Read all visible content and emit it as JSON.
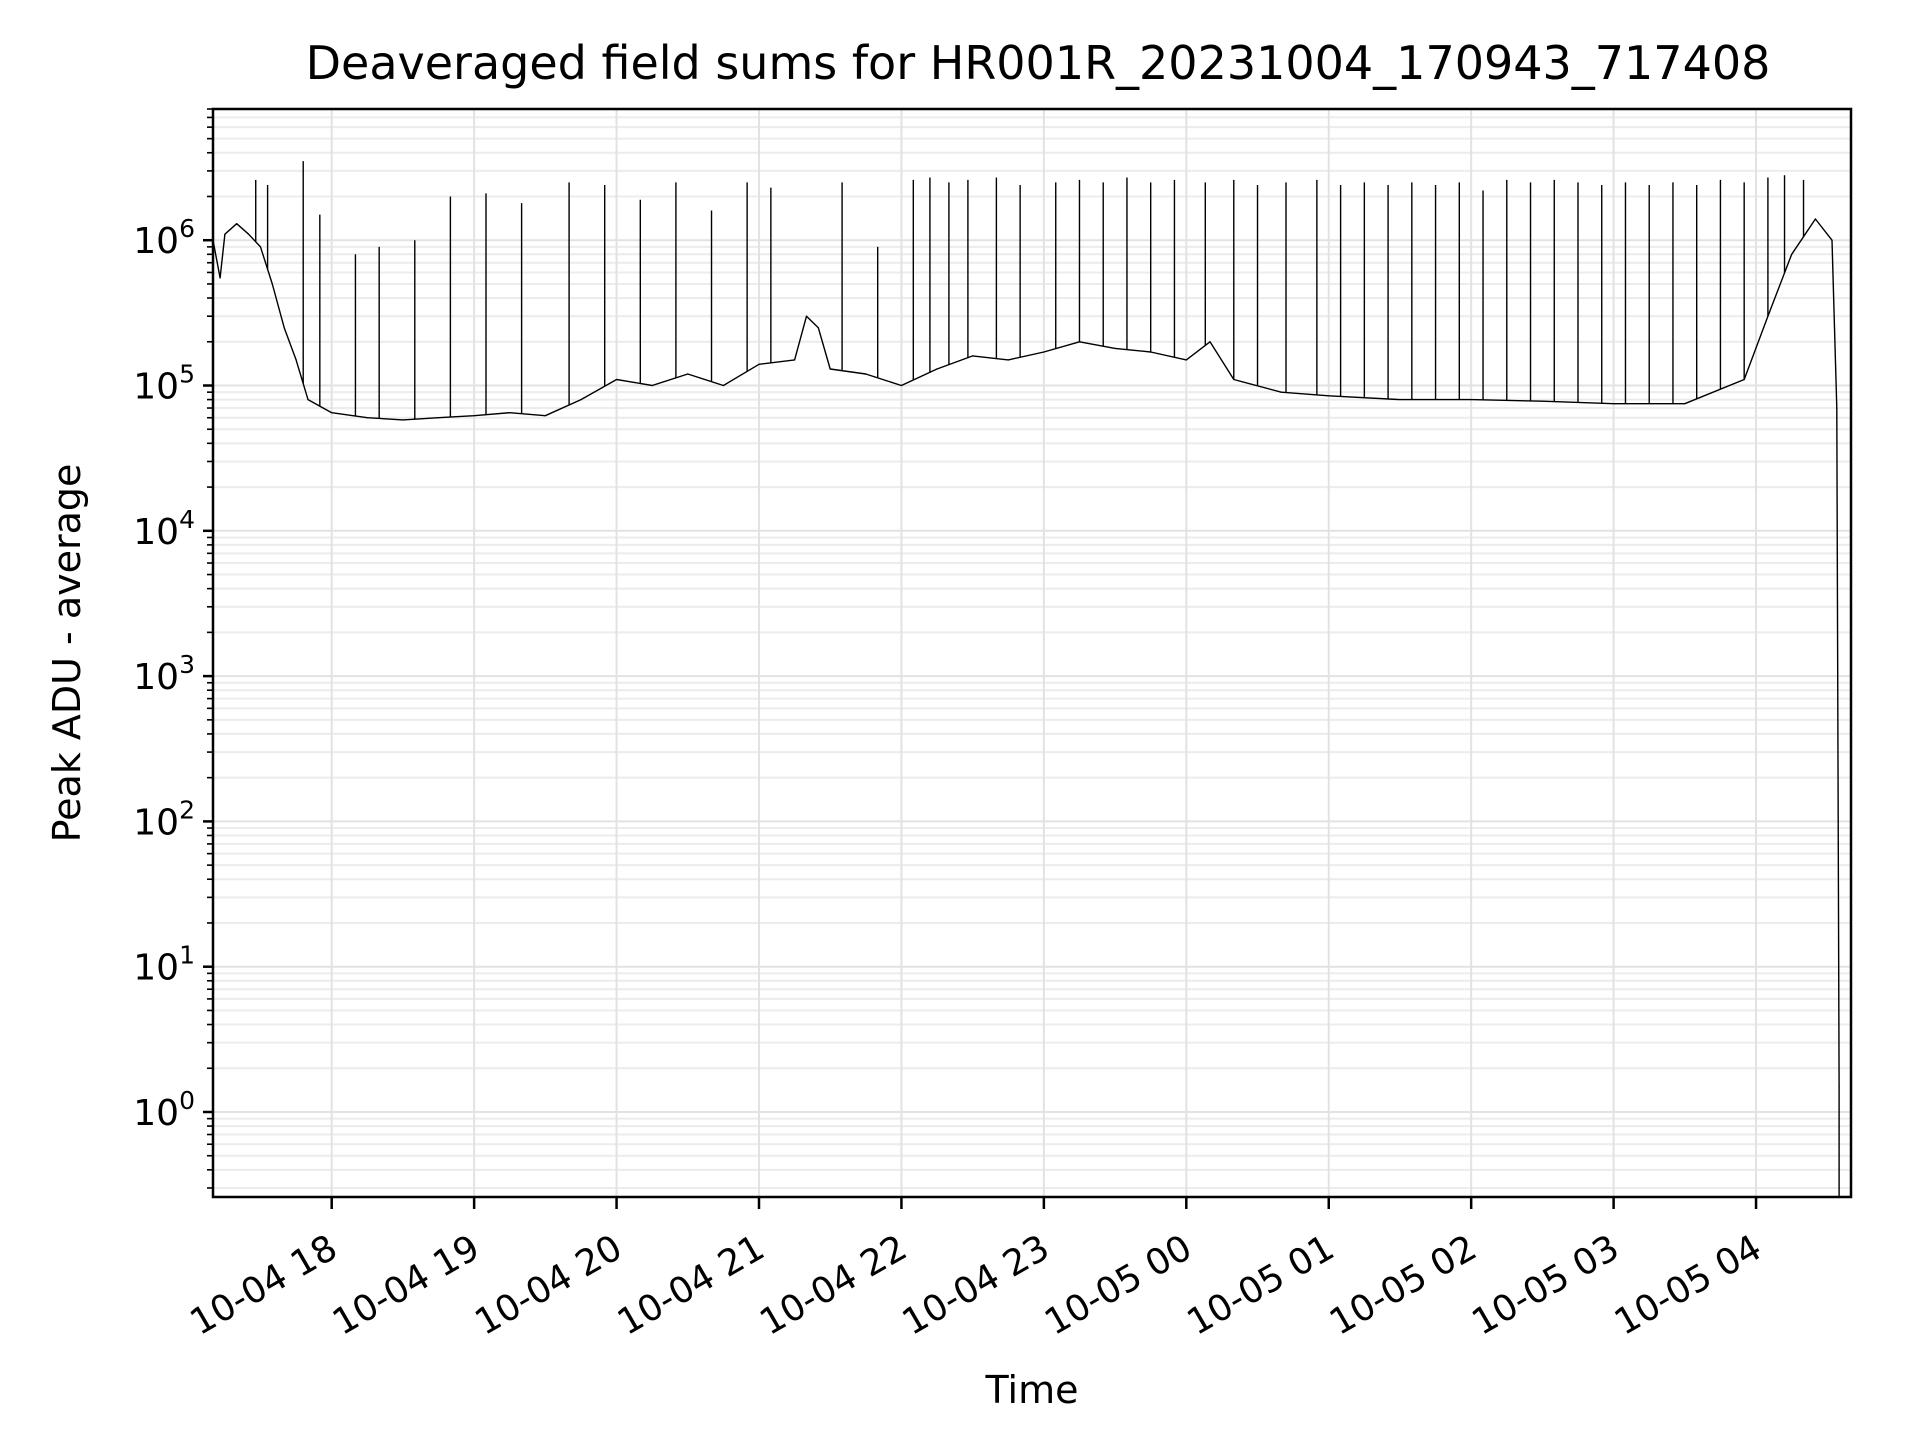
{
  "chart_data": {
    "type": "line",
    "title": "Deaveraged field sums for HR001R_20231004_170943_717408",
    "xlabel": "Time",
    "ylabel": "Peak ADU - average",
    "yscale": "log",
    "xlim": [
      "2023-10-04 17:10",
      "2023-10-05 04:40"
    ],
    "ylim": [
      0.26,
      8000000
    ],
    "grid": true,
    "x_ticks": [
      "10-04 18",
      "10-04 19",
      "10-04 20",
      "10-04 21",
      "10-04 22",
      "10-04 23",
      "10-05 00",
      "10-05 01",
      "10-05 02",
      "10-05 03",
      "10-05 04"
    ],
    "y_ticks": [
      {
        "value": 1,
        "base": "10",
        "exp": "0"
      },
      {
        "value": 10,
        "base": "10",
        "exp": "1"
      },
      {
        "value": 100,
        "base": "10",
        "exp": "2"
      },
      {
        "value": 1000,
        "base": "10",
        "exp": "3"
      },
      {
        "value": 10000,
        "base": "10",
        "exp": "4"
      },
      {
        "value": 100000,
        "base": "10",
        "exp": "5"
      },
      {
        "value": 1000000,
        "base": "10",
        "exp": "6"
      }
    ],
    "series": [
      {
        "color": "#000000",
        "points": [
          [
            "2023-10-04 17:10",
            1000000
          ],
          [
            "2023-10-04 17:13",
            550000
          ],
          [
            "2023-10-04 17:15",
            1100000
          ],
          [
            "2023-10-04 17:20",
            1300000
          ],
          [
            "2023-10-04 17:25",
            1100000
          ],
          [
            "2023-10-04 17:30",
            900000
          ],
          [
            "2023-10-04 17:35",
            500000
          ],
          [
            "2023-10-04 17:40",
            250000
          ],
          [
            "2023-10-04 17:45",
            150000
          ],
          [
            "2023-10-04 17:50",
            80000
          ],
          [
            "2023-10-04 18:00",
            65000
          ],
          [
            "2023-10-04 18:15",
            60000
          ],
          [
            "2023-10-04 18:30",
            58000
          ],
          [
            "2023-10-04 18:45",
            60000
          ],
          [
            "2023-10-04 19:00",
            62000
          ],
          [
            "2023-10-04 19:15",
            65000
          ],
          [
            "2023-10-04 19:30",
            62000
          ],
          [
            "2023-10-04 19:45",
            80000
          ],
          [
            "2023-10-04 20:00",
            110000
          ],
          [
            "2023-10-04 20:15",
            100000
          ],
          [
            "2023-10-04 20:30",
            120000
          ],
          [
            "2023-10-04 20:45",
            100000
          ],
          [
            "2023-10-04 21:00",
            140000
          ],
          [
            "2023-10-04 21:15",
            150000
          ],
          [
            "2023-10-04 21:20",
            300000
          ],
          [
            "2023-10-04 21:25",
            250000
          ],
          [
            "2023-10-04 21:30",
            130000
          ],
          [
            "2023-10-04 21:45",
            120000
          ],
          [
            "2023-10-04 22:00",
            100000
          ],
          [
            "2023-10-04 22:15",
            130000
          ],
          [
            "2023-10-04 22:30",
            160000
          ],
          [
            "2023-10-04 22:45",
            150000
          ],
          [
            "2023-10-04 23:00",
            170000
          ],
          [
            "2023-10-04 23:15",
            200000
          ],
          [
            "2023-10-04 23:30",
            180000
          ],
          [
            "2023-10-04 23:45",
            170000
          ],
          [
            "2023-10-05 00:00",
            150000
          ],
          [
            "2023-10-05 00:10",
            200000
          ],
          [
            "2023-10-05 00:20",
            110000
          ],
          [
            "2023-10-05 00:40",
            90000
          ],
          [
            "2023-10-05 01:00",
            85000
          ],
          [
            "2023-10-05 01:30",
            80000
          ],
          [
            "2023-10-05 02:00",
            80000
          ],
          [
            "2023-10-05 02:30",
            78000
          ],
          [
            "2023-10-05 03:00",
            75000
          ],
          [
            "2023-10-05 03:30",
            75000
          ],
          [
            "2023-10-05 03:55",
            110000
          ],
          [
            "2023-10-05 04:05",
            300000
          ],
          [
            "2023-10-05 04:15",
            800000
          ],
          [
            "2023-10-05 04:25",
            1400000
          ],
          [
            "2023-10-05 04:32",
            1000000
          ],
          [
            "2023-10-05 04:34",
            70000
          ],
          [
            "2023-10-05 04:35",
            1.5
          ],
          [
            "2023-10-05 04:35",
            0.26
          ]
        ]
      }
    ],
    "spikes": [
      [
        "2023-10-04 17:28",
        2600000
      ],
      [
        "2023-10-04 17:33",
        2400000
      ],
      [
        "2023-10-04 17:48",
        3500000
      ],
      [
        "2023-10-04 17:55",
        1500000
      ],
      [
        "2023-10-04 18:10",
        800000
      ],
      [
        "2023-10-04 18:20",
        900000
      ],
      [
        "2023-10-04 18:35",
        1000000
      ],
      [
        "2023-10-04 18:50",
        2000000
      ],
      [
        "2023-10-04 19:05",
        2100000
      ],
      [
        "2023-10-04 19:20",
        1800000
      ],
      [
        "2023-10-04 19:40",
        2500000
      ],
      [
        "2023-10-04 19:55",
        2400000
      ],
      [
        "2023-10-04 20:10",
        1900000
      ],
      [
        "2023-10-04 20:25",
        2500000
      ],
      [
        "2023-10-04 20:40",
        1600000
      ],
      [
        "2023-10-04 20:55",
        2500000
      ],
      [
        "2023-10-04 21:05",
        2300000
      ],
      [
        "2023-10-04 21:35",
        2500000
      ],
      [
        "2023-10-04 21:50",
        900000
      ],
      [
        "2023-10-04 22:05",
        2600000
      ],
      [
        "2023-10-04 22:12",
        2700000
      ],
      [
        "2023-10-04 22:20",
        2500000
      ],
      [
        "2023-10-04 22:28",
        2600000
      ],
      [
        "2023-10-04 22:40",
        2700000
      ],
      [
        "2023-10-04 22:50",
        2400000
      ],
      [
        "2023-10-04 23:05",
        2500000
      ],
      [
        "2023-10-04 23:15",
        2600000
      ],
      [
        "2023-10-04 23:25",
        2500000
      ],
      [
        "2023-10-04 23:35",
        2700000
      ],
      [
        "2023-10-04 23:45",
        2500000
      ],
      [
        "2023-10-04 23:55",
        2600000
      ],
      [
        "2023-10-05 00:08",
        2500000
      ],
      [
        "2023-10-05 00:20",
        2600000
      ],
      [
        "2023-10-05 00:30",
        2400000
      ],
      [
        "2023-10-05 00:42",
        2500000
      ],
      [
        "2023-10-05 00:55",
        2600000
      ],
      [
        "2023-10-05 01:05",
        2400000
      ],
      [
        "2023-10-05 01:15",
        2500000
      ],
      [
        "2023-10-05 01:25",
        2400000
      ],
      [
        "2023-10-05 01:35",
        2500000
      ],
      [
        "2023-10-05 01:45",
        2400000
      ],
      [
        "2023-10-05 01:55",
        2500000
      ],
      [
        "2023-10-05 02:05",
        2200000
      ],
      [
        "2023-10-05 02:15",
        2600000
      ],
      [
        "2023-10-05 02:25",
        2500000
      ],
      [
        "2023-10-05 02:35",
        2600000
      ],
      [
        "2023-10-05 02:45",
        2500000
      ],
      [
        "2023-10-05 02:55",
        2400000
      ],
      [
        "2023-10-05 03:05",
        2500000
      ],
      [
        "2023-10-05 03:15",
        2400000
      ],
      [
        "2023-10-05 03:25",
        2500000
      ],
      [
        "2023-10-05 03:35",
        2400000
      ],
      [
        "2023-10-05 03:45",
        2600000
      ],
      [
        "2023-10-05 03:55",
        2500000
      ],
      [
        "2023-10-05 04:05",
        2700000
      ],
      [
        "2023-10-05 04:12",
        2800000
      ],
      [
        "2023-10-05 04:20",
        2600000
      ]
    ]
  }
}
